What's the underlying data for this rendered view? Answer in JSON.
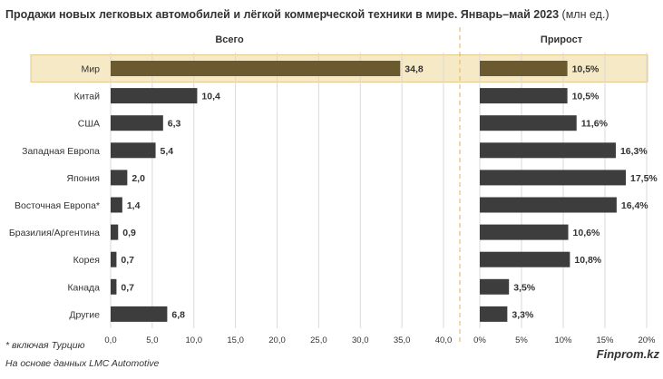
{
  "chart_data": {
    "type": "bar",
    "orientation": "horizontal",
    "title": "Продажи новых легковых автомобилей и лёгкой коммерческой техники в мире. Январь–май 2023",
    "title_unit": " (млн ед.)",
    "categories": [
      "Мир",
      "Китай",
      "США",
      "Западная Европа",
      "Япония",
      "Восточная Европа*",
      "Бразилия/Аргентина",
      "Корея",
      "Канада",
      "Другие"
    ],
    "highlight_category": "Мир",
    "panels": [
      {
        "name": "Всего",
        "values": [
          34.8,
          10.4,
          6.3,
          5.4,
          2.0,
          1.4,
          0.9,
          0.7,
          0.7,
          6.8
        ],
        "value_labels": [
          "34,8",
          "10,4",
          "6,3",
          "5,4",
          "2,0",
          "1,4",
          "0,9",
          "0,7",
          "0,7",
          "6,8"
        ],
        "xlim": [
          0,
          40
        ],
        "ticks": [
          0,
          5,
          10,
          15,
          20,
          25,
          30,
          35,
          40
        ],
        "tick_labels": [
          "0,0",
          "5,0",
          "10,0",
          "15,0",
          "20,0",
          "25,0",
          "30,0",
          "35,0",
          "40,0"
        ]
      },
      {
        "name": "Прирост",
        "values": [
          10.5,
          10.5,
          11.6,
          16.3,
          17.5,
          16.4,
          10.6,
          10.8,
          3.5,
          3.3
        ],
        "value_labels": [
          "10,5%",
          "10,5%",
          "11,6%",
          "16,3%",
          "17,5%",
          "16,4%",
          "10,6%",
          "10,8%",
          "3,5%",
          "3,3%"
        ],
        "xlim": [
          0,
          20
        ],
        "ticks": [
          0,
          5,
          10,
          15,
          20
        ],
        "tick_labels": [
          "0%",
          "5%",
          "10%",
          "15%",
          "20%"
        ]
      }
    ],
    "grid": true,
    "footnote": "* включая Турцию",
    "source": "На основе данных LMC Automotive",
    "brand": "Finprom.kz"
  },
  "colors": {
    "bar": "#3d3d3d",
    "bar_highlight": "#6b5a2f",
    "highlight_band": "#f6e9c6",
    "highlight_band_border": "#e3c98a",
    "grid": "#d9d9d9",
    "divider": "#e0b25a",
    "text": "#333333"
  }
}
